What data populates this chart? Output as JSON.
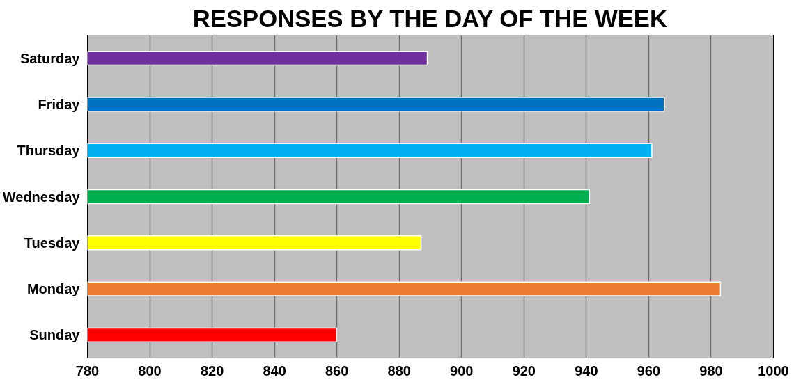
{
  "chart_data": {
    "type": "bar",
    "orientation": "horizontal",
    "title": "RESPONSES BY THE DAY OF THE WEEK",
    "categories": [
      "Saturday",
      "Friday",
      "Thursday",
      "Wednesday",
      "Tuesday",
      "Monday",
      "Sunday"
    ],
    "values": [
      889,
      965,
      961,
      941,
      887,
      983,
      860
    ],
    "colors": [
      "#7030a0",
      "#0070c0",
      "#00b0f0",
      "#00b050",
      "#ffff00",
      "#ed7d31",
      "#ff0000"
    ],
    "xlim": [
      780,
      1000
    ],
    "xticks": [
      780,
      800,
      820,
      840,
      860,
      880,
      900,
      920,
      940,
      960,
      980,
      1000
    ],
    "grid": "x"
  }
}
